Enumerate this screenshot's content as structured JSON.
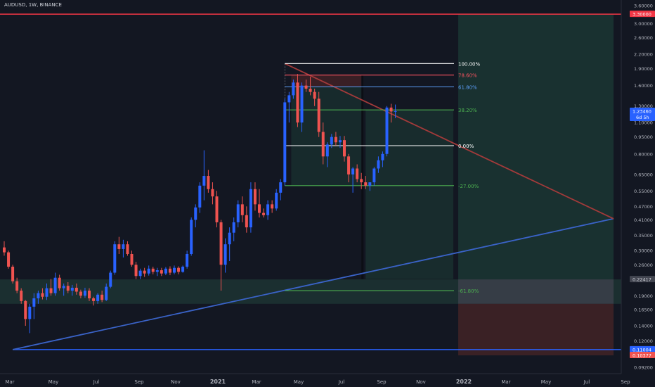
{
  "header": {
    "ticker": "AUDUSD, 1W, BINANCE"
  },
  "colors": {
    "background": "#131722",
    "up": "#2962ff",
    "down": "#ef5350",
    "axis_text": "#b2b5be",
    "resistance": "#f23645",
    "support": "#2962ff",
    "fib": "#ffffff",
    "fib_786": "#f7525f",
    "fib_618": "#5b9cf6",
    "fib_382": "#4caf50",
    "fib_ext": "#4caf50"
  },
  "chart_data": {
    "type": "candlestick",
    "scale": "log",
    "x_axis": {
      "ticks": [
        "Mar",
        "May",
        "Jul",
        "Sep",
        "Nov",
        "2021",
        "Mar",
        "May",
        "Jul",
        "Sep",
        "Nov",
        "2022",
        "Mar",
        "May",
        "Jul",
        "Sep"
      ]
    },
    "y_axis": {
      "ticks": [
        "3.60000",
        "3.30000",
        "3.00000",
        "2.60000",
        "2.20000",
        "1.90000",
        "1.60000",
        "1.30000",
        "1.10000",
        "0.95000",
        "0.80000",
        "0.65000",
        "0.55000",
        "0.47000",
        "0.41000",
        "0.35000",
        "0.30000",
        "0.26000",
        "0.22417",
        "0.19000",
        "0.16500",
        "0.14000",
        "0.12000",
        "0.11004",
        "0.10377",
        "0.09200"
      ],
      "ylim": [
        0.09,
        3.65
      ]
    },
    "price_labels": [
      {
        "value": 3.3,
        "text": "3.30000",
        "kind": "resistance"
      },
      {
        "value": 1.2346,
        "text": "1.23460",
        "sub": "6d 5h",
        "kind": "current"
      },
      {
        "value": 0.22417,
        "text": "0.22417",
        "kind": "zone"
      },
      {
        "value": 0.11004,
        "text": "0.11004",
        "kind": "support"
      },
      {
        "value": 0.10377,
        "text": "0.10377",
        "kind": "stop"
      }
    ],
    "fib_levels": [
      {
        "label": "100.00%",
        "value": 2.0,
        "tone": "fib"
      },
      {
        "label": "78.60%",
        "value": 1.78,
        "tone": "fib_786"
      },
      {
        "label": "61.80%",
        "value": 1.58,
        "tone": "fib_618"
      },
      {
        "label": "38.20%",
        "value": 1.25,
        "tone": "fib_382"
      },
      {
        "label": "0.00%",
        "value": 0.87,
        "tone": "fib"
      },
      {
        "label": "-27.00%",
        "value": 0.58,
        "tone": "fib_ext"
      },
      {
        "label": "-61.80%",
        "value": 0.2,
        "tone": "fib_ext"
      }
    ],
    "candles": [
      {
        "o": 0.31,
        "h": 0.33,
        "l": 0.285,
        "c": 0.295
      },
      {
        "o": 0.295,
        "h": 0.3,
        "l": 0.25,
        "c": 0.255
      },
      {
        "o": 0.255,
        "h": 0.26,
        "l": 0.215,
        "c": 0.22
      },
      {
        "o": 0.22,
        "h": 0.228,
        "l": 0.195,
        "c": 0.2
      },
      {
        "o": 0.2,
        "h": 0.205,
        "l": 0.175,
        "c": 0.18
      },
      {
        "o": 0.18,
        "h": 0.182,
        "l": 0.14,
        "c": 0.15
      },
      {
        "o": 0.15,
        "h": 0.175,
        "l": 0.13,
        "c": 0.17
      },
      {
        "o": 0.17,
        "h": 0.195,
        "l": 0.15,
        "c": 0.185
      },
      {
        "o": 0.185,
        "h": 0.2,
        "l": 0.175,
        "c": 0.195
      },
      {
        "o": 0.195,
        "h": 0.205,
        "l": 0.183,
        "c": 0.188
      },
      {
        "o": 0.188,
        "h": 0.215,
        "l": 0.182,
        "c": 0.205
      },
      {
        "o": 0.205,
        "h": 0.225,
        "l": 0.19,
        "c": 0.195
      },
      {
        "o": 0.195,
        "h": 0.24,
        "l": 0.19,
        "c": 0.228
      },
      {
        "o": 0.228,
        "h": 0.235,
        "l": 0.2,
        "c": 0.205
      },
      {
        "o": 0.205,
        "h": 0.215,
        "l": 0.19,
        "c": 0.21
      },
      {
        "o": 0.21,
        "h": 0.218,
        "l": 0.195,
        "c": 0.2
      },
      {
        "o": 0.2,
        "h": 0.212,
        "l": 0.19,
        "c": 0.206
      },
      {
        "o": 0.206,
        "h": 0.215,
        "l": 0.192,
        "c": 0.198
      },
      {
        "o": 0.198,
        "h": 0.202,
        "l": 0.185,
        "c": 0.19
      },
      {
        "o": 0.19,
        "h": 0.206,
        "l": 0.186,
        "c": 0.2
      },
      {
        "o": 0.2,
        "h": 0.205,
        "l": 0.18,
        "c": 0.185
      },
      {
        "o": 0.185,
        "h": 0.188,
        "l": 0.172,
        "c": 0.18
      },
      {
        "o": 0.18,
        "h": 0.195,
        "l": 0.175,
        "c": 0.192
      },
      {
        "o": 0.192,
        "h": 0.2,
        "l": 0.178,
        "c": 0.182
      },
      {
        "o": 0.182,
        "h": 0.215,
        "l": 0.18,
        "c": 0.208
      },
      {
        "o": 0.208,
        "h": 0.245,
        "l": 0.205,
        "c": 0.24
      },
      {
        "o": 0.24,
        "h": 0.33,
        "l": 0.235,
        "c": 0.32
      },
      {
        "o": 0.32,
        "h": 0.345,
        "l": 0.29,
        "c": 0.305
      },
      {
        "o": 0.305,
        "h": 0.335,
        "l": 0.28,
        "c": 0.32
      },
      {
        "o": 0.32,
        "h": 0.33,
        "l": 0.285,
        "c": 0.29
      },
      {
        "o": 0.29,
        "h": 0.3,
        "l": 0.255,
        "c": 0.26
      },
      {
        "o": 0.26,
        "h": 0.268,
        "l": 0.225,
        "c": 0.232
      },
      {
        "o": 0.232,
        "h": 0.25,
        "l": 0.225,
        "c": 0.245
      },
      {
        "o": 0.245,
        "h": 0.252,
        "l": 0.23,
        "c": 0.238
      },
      {
        "o": 0.238,
        "h": 0.258,
        "l": 0.233,
        "c": 0.25
      },
      {
        "o": 0.25,
        "h": 0.255,
        "l": 0.236,
        "c": 0.242
      },
      {
        "o": 0.242,
        "h": 0.252,
        "l": 0.232,
        "c": 0.246
      },
      {
        "o": 0.246,
        "h": 0.252,
        "l": 0.232,
        "c": 0.238
      },
      {
        "o": 0.238,
        "h": 0.254,
        "l": 0.234,
        "c": 0.25
      },
      {
        "o": 0.25,
        "h": 0.256,
        "l": 0.234,
        "c": 0.24
      },
      {
        "o": 0.24,
        "h": 0.258,
        "l": 0.236,
        "c": 0.252
      },
      {
        "o": 0.252,
        "h": 0.256,
        "l": 0.236,
        "c": 0.242
      },
      {
        "o": 0.242,
        "h": 0.258,
        "l": 0.24,
        "c": 0.255
      },
      {
        "o": 0.255,
        "h": 0.3,
        "l": 0.25,
        "c": 0.29
      },
      {
        "o": 0.29,
        "h": 0.42,
        "l": 0.285,
        "c": 0.41
      },
      {
        "o": 0.41,
        "h": 0.48,
        "l": 0.38,
        "c": 0.465
      },
      {
        "o": 0.465,
        "h": 0.6,
        "l": 0.44,
        "c": 0.58
      },
      {
        "o": 0.58,
        "h": 0.83,
        "l": 0.5,
        "c": 0.64
      },
      {
        "o": 0.64,
        "h": 0.68,
        "l": 0.54,
        "c": 0.56
      },
      {
        "o": 0.56,
        "h": 0.6,
        "l": 0.48,
        "c": 0.52
      },
      {
        "o": 0.52,
        "h": 0.55,
        "l": 0.38,
        "c": 0.4
      },
      {
        "o": 0.4,
        "h": 0.41,
        "l": 0.2,
        "c": 0.26
      },
      {
        "o": 0.26,
        "h": 0.34,
        "l": 0.24,
        "c": 0.32
      },
      {
        "o": 0.32,
        "h": 0.38,
        "l": 0.27,
        "c": 0.36
      },
      {
        "o": 0.36,
        "h": 0.42,
        "l": 0.33,
        "c": 0.4
      },
      {
        "o": 0.4,
        "h": 0.5,
        "l": 0.38,
        "c": 0.48
      },
      {
        "o": 0.48,
        "h": 0.52,
        "l": 0.4,
        "c": 0.43
      },
      {
        "o": 0.43,
        "h": 0.47,
        "l": 0.36,
        "c": 0.38
      },
      {
        "o": 0.38,
        "h": 0.6,
        "l": 0.36,
        "c": 0.56
      },
      {
        "o": 0.56,
        "h": 0.6,
        "l": 0.45,
        "c": 0.48
      },
      {
        "o": 0.48,
        "h": 0.56,
        "l": 0.42,
        "c": 0.44
      },
      {
        "o": 0.44,
        "h": 0.46,
        "l": 0.42,
        "c": 0.43
      },
      {
        "o": 0.43,
        "h": 0.5,
        "l": 0.41,
        "c": 0.48
      },
      {
        "o": 0.48,
        "h": 0.5,
        "l": 0.44,
        "c": 0.46
      },
      {
        "o": 0.46,
        "h": 0.56,
        "l": 0.45,
        "c": 0.54
      },
      {
        "o": 0.54,
        "h": 0.62,
        "l": 0.5,
        "c": 0.6
      },
      {
        "o": 0.6,
        "h": 1.4,
        "l": 0.58,
        "c": 1.35
      },
      {
        "o": 1.35,
        "h": 1.5,
        "l": 1.1,
        "c": 1.45
      },
      {
        "o": 1.45,
        "h": 1.7,
        "l": 1.4,
        "c": 1.65
      },
      {
        "o": 1.65,
        "h": 1.8,
        "l": 1.05,
        "c": 1.1
      },
      {
        "o": 1.1,
        "h": 1.65,
        "l": 1.0,
        "c": 1.6
      },
      {
        "o": 1.6,
        "h": 1.7,
        "l": 1.5,
        "c": 1.55
      },
      {
        "o": 1.55,
        "h": 1.75,
        "l": 1.45,
        "c": 1.5
      },
      {
        "o": 1.5,
        "h": 1.55,
        "l": 1.3,
        "c": 1.4
      },
      {
        "o": 1.4,
        "h": 1.5,
        "l": 0.95,
        "c": 1.0
      },
      {
        "o": 1.0,
        "h": 1.1,
        "l": 0.72,
        "c": 0.78
      },
      {
        "o": 0.78,
        "h": 0.9,
        "l": 0.7,
        "c": 0.88
      },
      {
        "o": 0.88,
        "h": 0.98,
        "l": 0.85,
        "c": 0.95
      },
      {
        "o": 0.95,
        "h": 1.0,
        "l": 0.87,
        "c": 0.9
      },
      {
        "o": 0.9,
        "h": 0.96,
        "l": 0.85,
        "c": 0.92
      },
      {
        "o": 0.92,
        "h": 0.96,
        "l": 0.74,
        "c": 0.78
      },
      {
        "o": 0.78,
        "h": 0.8,
        "l": 0.6,
        "c": 0.65
      },
      {
        "o": 0.65,
        "h": 0.7,
        "l": 0.54,
        "c": 0.69
      },
      {
        "o": 0.69,
        "h": 0.72,
        "l": 0.6,
        "c": 0.62
      },
      {
        "o": 0.62,
        "h": 0.66,
        "l": 0.56,
        "c": 0.6
      },
      {
        "o": 0.6,
        "h": 0.64,
        "l": 0.56,
        "c": 0.58
      },
      {
        "o": 0.58,
        "h": 0.6,
        "l": 0.55,
        "c": 0.6
      },
      {
        "o": 0.6,
        "h": 0.7,
        "l": 0.58,
        "c": 0.69
      },
      {
        "o": 0.69,
        "h": 0.78,
        "l": 0.66,
        "c": 0.75
      },
      {
        "o": 0.75,
        "h": 0.82,
        "l": 0.7,
        "c": 0.8
      },
      {
        "o": 0.8,
        "h": 1.3,
        "l": 0.78,
        "c": 1.28
      },
      {
        "o": 1.28,
        "h": 1.33,
        "l": 1.1,
        "c": 1.23
      },
      {
        "o": 1.23,
        "h": 1.32,
        "l": 1.15,
        "c": 1.235
      }
    ]
  }
}
